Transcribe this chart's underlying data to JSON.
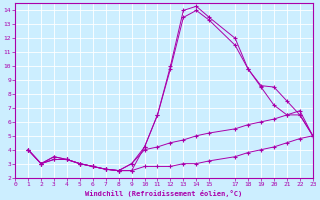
{
  "xlabel": "Windchill (Refroidissement éolien,°C)",
  "bg_color": "#cceeff",
  "line_color": "#aa00aa",
  "grid_color": "#aadddd",
  "xlim": [
    0,
    23
  ],
  "ylim": [
    2,
    14.5
  ],
  "xticks": [
    0,
    1,
    2,
    3,
    4,
    5,
    6,
    7,
    8,
    9,
    10,
    11,
    12,
    13,
    14,
    15,
    17,
    18,
    19,
    20,
    21,
    22,
    23
  ],
  "yticks": [
    2,
    3,
    4,
    5,
    6,
    7,
    8,
    9,
    10,
    11,
    12,
    13,
    14
  ],
  "lines": [
    {
      "x": [
        1,
        2,
        3,
        4,
        5,
        6,
        7,
        8,
        9,
        10,
        11,
        12,
        13,
        14,
        15,
        17,
        18,
        19,
        20,
        21,
        22,
        23
      ],
      "y": [
        4,
        3,
        3.3,
        3.3,
        3.0,
        2.8,
        2.6,
        2.5,
        2.5,
        4.2,
        6.5,
        10.0,
        14.0,
        14.3,
        13.5,
        12.0,
        9.8,
        8.5,
        7.2,
        6.5,
        6.5,
        5.0
      ]
    },
    {
      "x": [
        1,
        2,
        3,
        4,
        5,
        6,
        7,
        8,
        9,
        10,
        11,
        12,
        13,
        14,
        15,
        17,
        18,
        19,
        20,
        21,
        22,
        23
      ],
      "y": [
        4,
        3.0,
        3.5,
        3.3,
        3.0,
        2.8,
        2.6,
        2.5,
        3.0,
        4.0,
        4.2,
        4.5,
        4.7,
        5.0,
        5.2,
        5.5,
        5.8,
        6.0,
        6.2,
        6.5,
        6.8,
        5.0
      ]
    },
    {
      "x": [
        1,
        2,
        3,
        4,
        5,
        6,
        7,
        8,
        9,
        10,
        11,
        12,
        13,
        14,
        15,
        17,
        18,
        19,
        20,
        21,
        22,
        23
      ],
      "y": [
        4,
        3.0,
        3.5,
        3.3,
        3.0,
        2.8,
        2.6,
        2.5,
        3.0,
        4.2,
        6.5,
        9.8,
        13.5,
        14.0,
        13.3,
        11.5,
        9.8,
        8.6,
        8.5,
        7.5,
        6.5,
        5.0
      ]
    },
    {
      "x": [
        1,
        2,
        3,
        4,
        5,
        6,
        7,
        8,
        9,
        10,
        11,
        12,
        13,
        14,
        15,
        17,
        18,
        19,
        20,
        21,
        22,
        23
      ],
      "y": [
        4,
        3.0,
        3.3,
        3.3,
        3.0,
        2.8,
        2.6,
        2.5,
        2.5,
        2.8,
        2.8,
        2.8,
        3.0,
        3.0,
        3.2,
        3.5,
        3.8,
        4.0,
        4.2,
        4.5,
        4.8,
        5.0
      ]
    }
  ]
}
